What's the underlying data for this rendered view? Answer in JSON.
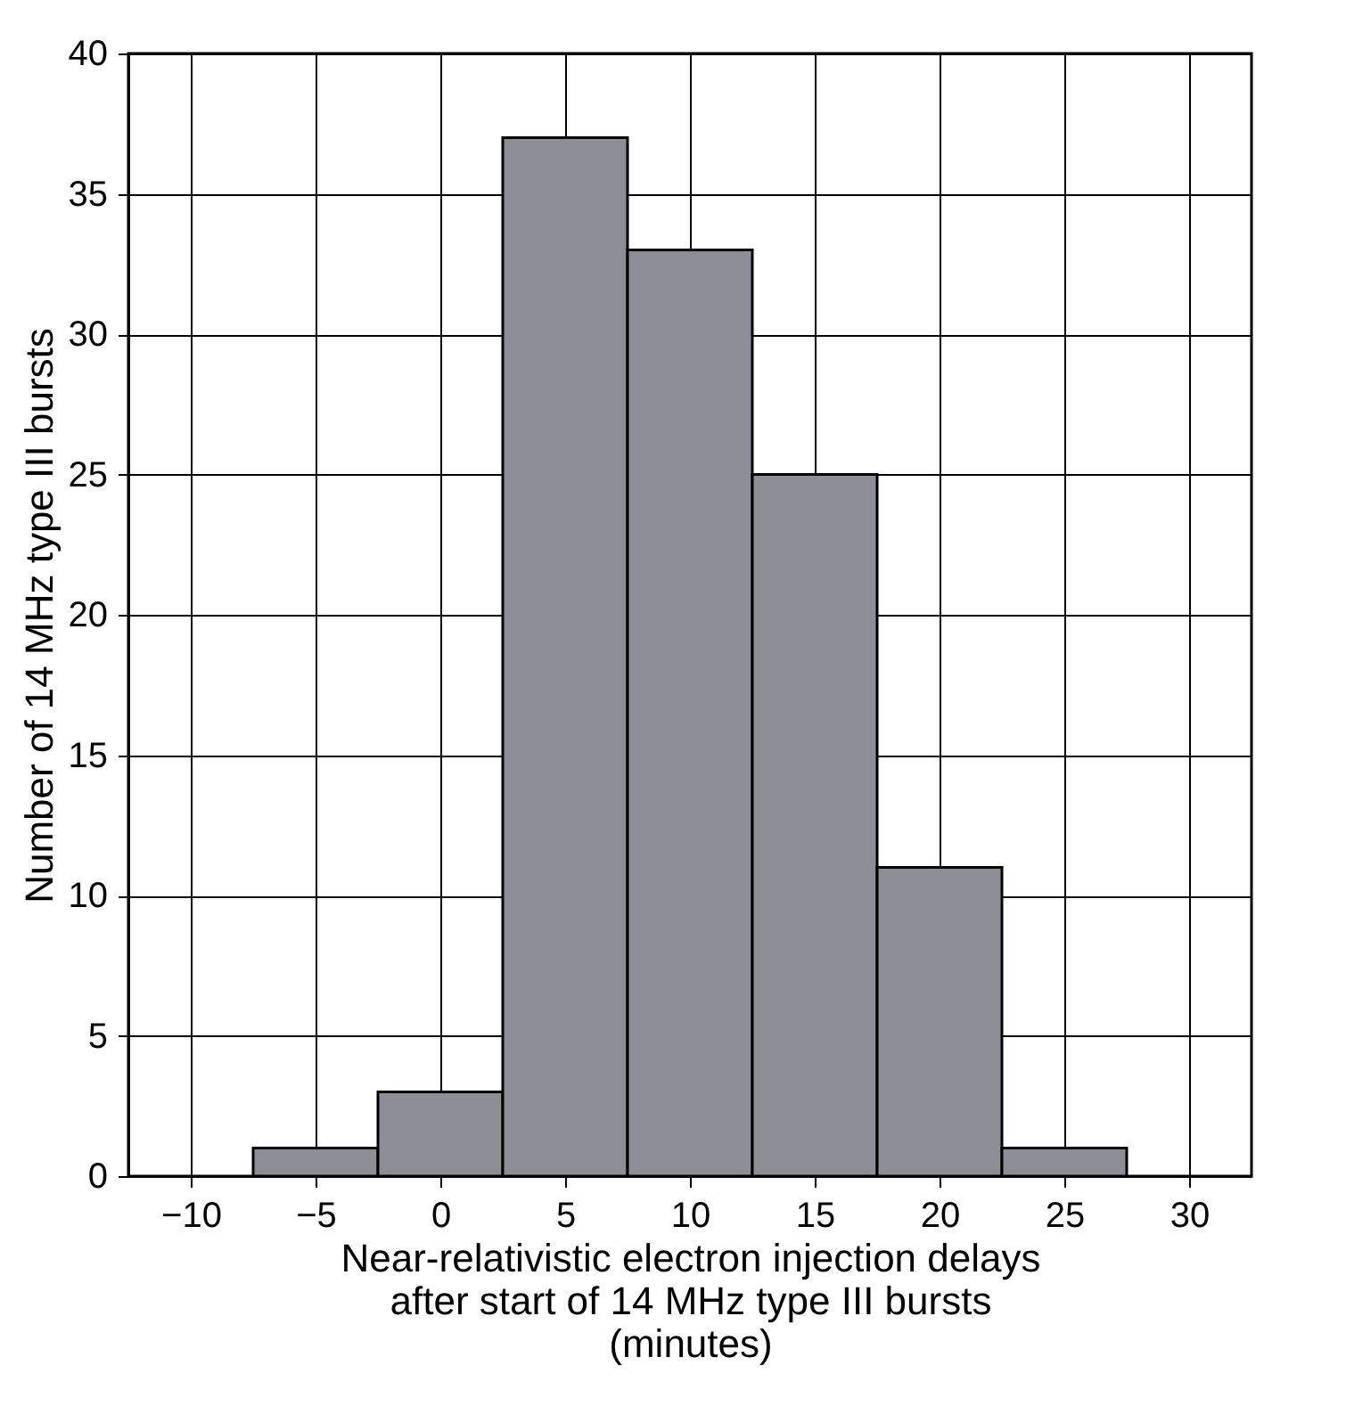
{
  "chart_data": {
    "type": "histogram",
    "xlabel": "Near-relativistic electron injection delays after start of 14 MHz type III bursts (minutes)",
    "ylabel": "Number of 14 MHz type III bursts",
    "bins": [
      -7.5,
      -2.5,
      2.5,
      7.5,
      12.5,
      17.5,
      22.5,
      27.5
    ],
    "values": [
      1,
      3,
      37,
      33,
      25,
      11,
      1
    ],
    "color": "#8e8e96",
    "xlim": [
      -12.5,
      32.5
    ],
    "xticks": [
      -10,
      -5,
      0,
      5,
      10,
      15,
      20,
      25,
      30
    ],
    "ylim": [
      0,
      40
    ],
    "yticks": [
      0,
      5,
      10,
      15,
      20,
      25,
      30,
      35,
      40
    ],
    "grid": true
  }
}
